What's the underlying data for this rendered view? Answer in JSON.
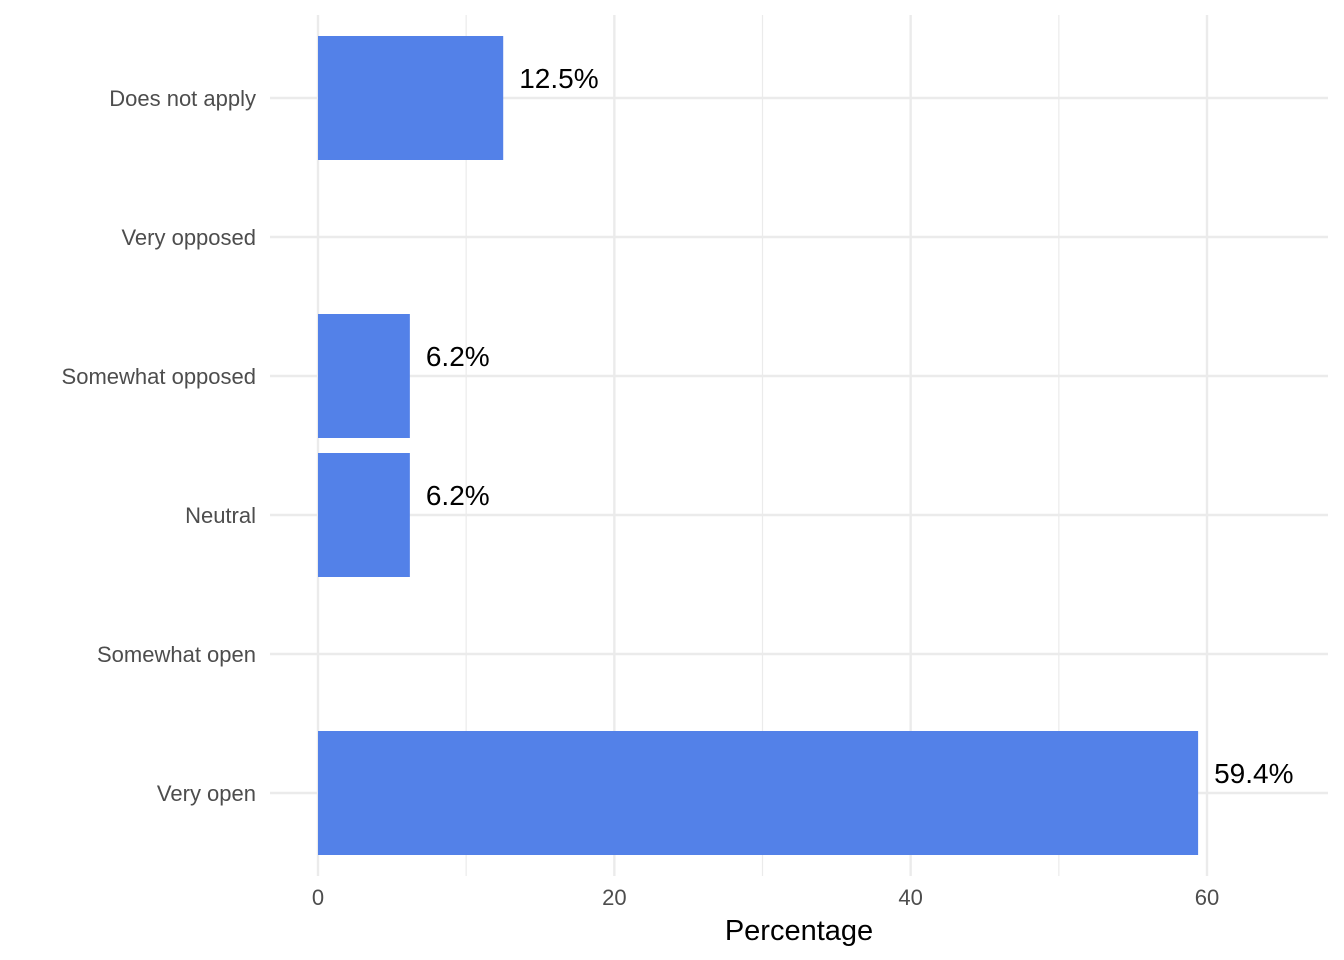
{
  "chart_data": {
    "type": "bar",
    "orientation": "horizontal",
    "categories": [
      "Does not apply",
      "Very opposed",
      "Somewhat opposed",
      "Neutral",
      "Somewhat open",
      "Very open"
    ],
    "values": [
      12.5,
      0,
      6.2,
      6.2,
      0,
      59.4
    ],
    "data_labels": [
      "12.5%",
      "",
      "6.2%",
      "6.2%",
      "",
      "59.4%"
    ],
    "xlabel": "Percentage",
    "ylabel": "",
    "title": "",
    "xlim": [
      0,
      68.5
    ],
    "x_ticks": [
      0,
      20,
      40,
      60
    ],
    "x_minor_ticks": [
      10,
      30,
      50
    ],
    "grid": true,
    "bar_color": "#5381e8",
    "grid_color": "#ebebeb"
  }
}
